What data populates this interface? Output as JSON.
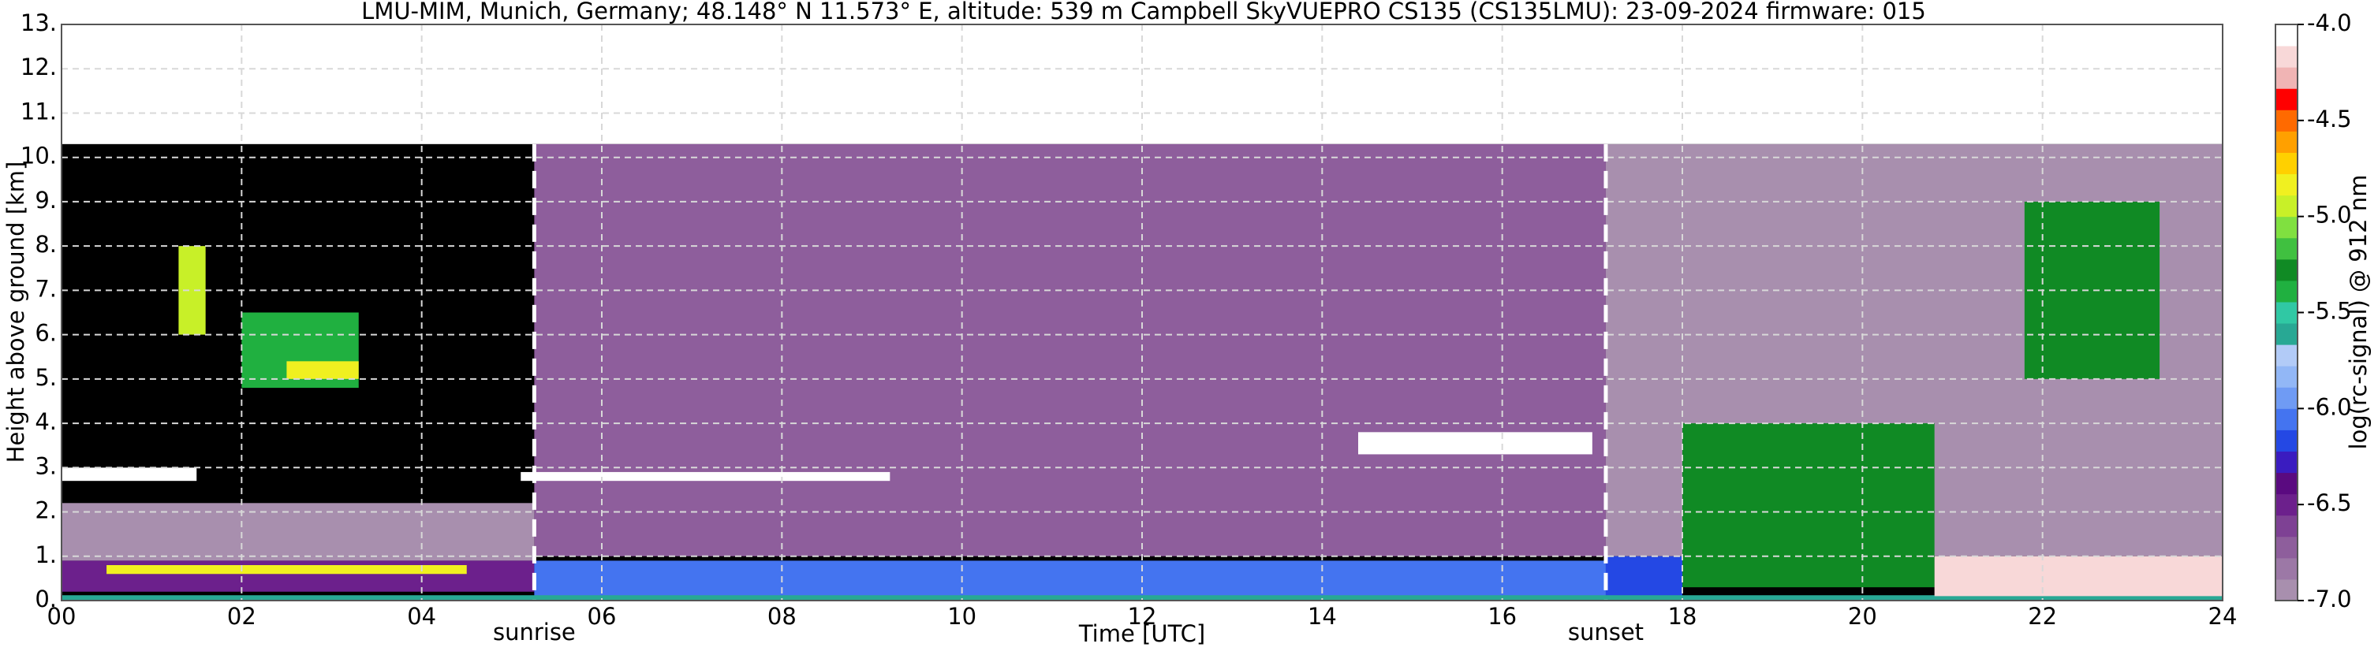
{
  "chart_data": {
    "type": "heatmap",
    "title": "LMU-MIM, Munich, Germany; 48.148° N 11.573° E, altitude: 539 m    Campbell SkyVUEPRO CS135 (CS135LMU): 23-09-2024    firmware: 015",
    "x_label": "Time [UTC]",
    "y_label": "Height above ground [km]",
    "xlim": [
      0,
      24
    ],
    "xticks": [
      {
        "value": 0,
        "label": "00"
      },
      {
        "value": 2,
        "label": "02"
      },
      {
        "value": 4,
        "label": "04"
      },
      {
        "value": 6,
        "label": "06"
      },
      {
        "value": 8,
        "label": "08"
      },
      10,
      12,
      14,
      16,
      18,
      20,
      22,
      24
    ],
    "ylim": [
      0,
      13
    ],
    "yticks": [
      {
        "value": 0,
        "label": "0."
      },
      {
        "value": 1,
        "label": "1."
      },
      {
        "value": 2,
        "label": "2."
      },
      {
        "value": 3,
        "label": "3."
      },
      {
        "value": 4,
        "label": "4."
      },
      {
        "value": 5,
        "label": "5."
      },
      {
        "value": 6,
        "label": "6."
      },
      {
        "value": 7,
        "label": "7."
      },
      {
        "value": 8,
        "label": "8."
      },
      {
        "value": 9,
        "label": "9."
      },
      {
        "value": 10,
        "label": "10."
      },
      {
        "value": 11,
        "label": "11."
      },
      {
        "value": 12,
        "label": "12."
      },
      {
        "value": 13,
        "label": "13."
      }
    ],
    "grid": true,
    "data_ylim": [
      0,
      10.3
    ],
    "background_color": "#000000",
    "colorbar": {
      "label": "log(rc-signal) @ 912 nm",
      "lim": [
        -7.0,
        -4.0
      ],
      "ticks": [
        {
          "value": -7,
          "label": "-7.0"
        },
        -6.5,
        {
          "value": -6,
          "label": "-6.0"
        },
        -5.5,
        {
          "value": -5,
          "label": "-5.0"
        },
        -4.5,
        {
          "value": -4,
          "label": "-4.0"
        }
      ],
      "colors": [
        "#a88fae",
        "#9c78a6",
        "#8e5e9c",
        "#7e4194",
        "#6c208c",
        "#5a0a80",
        "#3a1cc0",
        "#2448e4",
        "#4474f0",
        "#6f9bf4",
        "#92b7f6",
        "#b2cbf7",
        "#28a894",
        "#30c8a4",
        "#20b040",
        "#108a24",
        "#40c040",
        "#80e040",
        "#c8f028",
        "#f0f020",
        "#ffd000",
        "#ffa000",
        "#ff6a00",
        "#ff0000",
        "#f0b4b4",
        "#f8d8d8",
        "#ffffff"
      ]
    },
    "cells": [
      {
        "x": [
          5.25,
          17.15
        ],
        "y": [
          1.0,
          10.3
        ],
        "value": -6.7
      },
      {
        "x": [
          17.15,
          24
        ],
        "y": [
          1.0,
          10.3
        ],
        "value": -6.9
      },
      {
        "x": [
          0,
          5.25
        ],
        "y": [
          0.9,
          2.2
        ],
        "value": -6.9
      },
      {
        "x": [
          0,
          5.25
        ],
        "y": [
          0.2,
          0.9
        ],
        "value": -6.5
      },
      {
        "x": [
          0.5,
          4.5
        ],
        "y": [
          0.6,
          0.8
        ],
        "value": -4.8
      },
      {
        "x": [
          5.25,
          17.15
        ],
        "y": [
          0.1,
          0.9
        ],
        "value": -6.1
      },
      {
        "x": [
          17.15,
          18.0
        ],
        "y": [
          0.1,
          1.0
        ],
        "value": -6.2
      },
      {
        "x": [
          0,
          24
        ],
        "y": [
          0,
          0.12
        ],
        "value": -5.6
      },
      {
        "x": [
          1.3,
          1.6
        ],
        "y": [
          6.0,
          8.0
        ],
        "value": -5.0
      },
      {
        "x": [
          2.0,
          3.3
        ],
        "y": [
          4.8,
          6.5
        ],
        "value": -5.4
      },
      {
        "x": [
          2.5,
          3.3
        ],
        "y": [
          5.0,
          5.4
        ],
        "value": -4.8
      },
      {
        "x": [
          0,
          1.5
        ],
        "y": [
          2.7,
          3.0
        ],
        "value": -4.1
      },
      {
        "x": [
          5.1,
          9.2
        ],
        "y": [
          2.7,
          2.9
        ],
        "value": -4.1
      },
      {
        "x": [
          14.4,
          17.0
        ],
        "y": [
          3.3,
          3.8
        ],
        "value": -4.1
      },
      {
        "x": [
          18.0,
          20.8
        ],
        "y": [
          0.3,
          4.0
        ],
        "value": -5.3
      },
      {
        "x": [
          20.8,
          24
        ],
        "y": [
          0.1,
          1.0
        ],
        "value": -4.2
      },
      {
        "x": [
          21.8,
          23.3
        ],
        "y": [
          5.0,
          9.0
        ],
        "value": -5.3
      }
    ],
    "annotations": [
      {
        "label": "sunrise",
        "x": 5.25
      },
      {
        "label": "sunset",
        "x": 17.15
      }
    ]
  }
}
